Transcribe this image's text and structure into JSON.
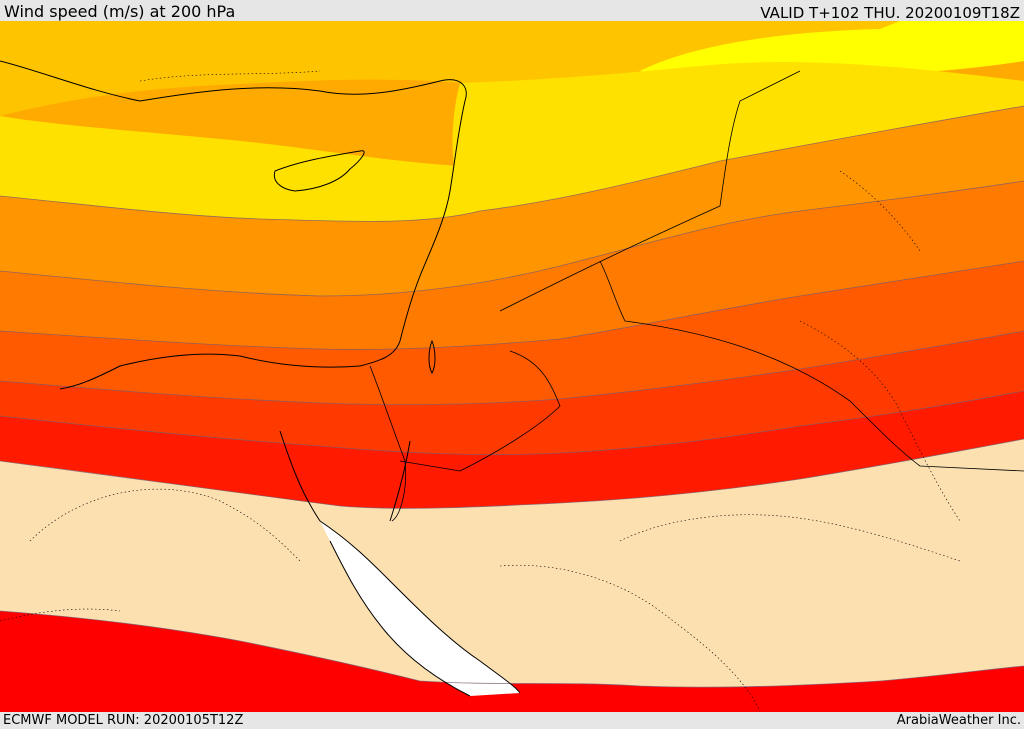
{
  "header": {
    "title": "Wind speed (m/s) at 200 hPa",
    "valid": "VALID T+102 THU. 20200109T18Z"
  },
  "footer": {
    "model_run": "ECMWF MODEL RUN: 20200105T12Z",
    "credit": "ArabiaWeather Inc."
  },
  "map": {
    "field": "wind speed 200 hPa",
    "bands": [
      {
        "color": "#ffff00"
      },
      {
        "color": "#ffe100"
      },
      {
        "color": "#ffc400"
      },
      {
        "color": "#ffaa00"
      },
      {
        "color": "#ff8c00"
      },
      {
        "color": "#ff6a00"
      },
      {
        "color": "#ff4500"
      },
      {
        "color": "#ff2a00"
      },
      {
        "color": "#ff0000"
      },
      {
        "color": "#fde0b0"
      }
    ],
    "sea_color": "#ffffff"
  }
}
